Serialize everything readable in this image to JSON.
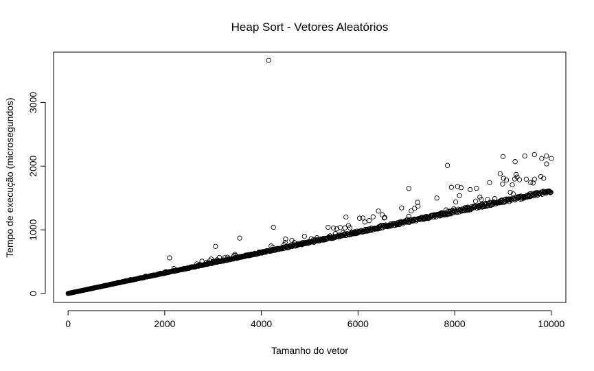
{
  "chart_data": {
    "type": "scatter",
    "title": "Heap Sort - Vetores Aleatórios",
    "xlabel": "Tamanho do vetor",
    "ylabel": "Tempo de execução (microsegundos)",
    "xlim": [
      -300,
      10300
    ],
    "ylim": [
      -140,
      3790
    ],
    "xticks": [
      0,
      2000,
      4000,
      6000,
      8000,
      10000
    ],
    "yticks": [
      0,
      1000,
      2000,
      3000
    ],
    "xtick_labels": [
      "0",
      "2000",
      "4000",
      "6000",
      "8000",
      "10000"
    ],
    "ytick_labels": [
      "0",
      "1000",
      "2000",
      "3000"
    ],
    "grid": false,
    "legend": "none",
    "marker": "open-circle",
    "color": "#000000",
    "series_model": {
      "x_range": [
        1,
        10000
      ],
      "x_step": 10,
      "baseline": "y ≈ 0.158 · x",
      "note": "dense band of points just above the baseline, spread widening with x"
    },
    "outliers": [
      {
        "x": 4150,
        "y": 3660
      },
      {
        "x": 2100,
        "y": 560
      },
      {
        "x": 3050,
        "y": 740
      },
      {
        "x": 3550,
        "y": 870
      },
      {
        "x": 4250,
        "y": 1040
      },
      {
        "x": 5750,
        "y": 1200
      },
      {
        "x": 7050,
        "y": 1650
      },
      {
        "x": 7850,
        "y": 2010
      },
      {
        "x": 9000,
        "y": 2150
      },
      {
        "x": 9250,
        "y": 2070
      },
      {
        "x": 9450,
        "y": 2160
      },
      {
        "x": 9650,
        "y": 2180
      },
      {
        "x": 9900,
        "y": 2160
      },
      {
        "x": 10000,
        "y": 2120
      }
    ]
  }
}
